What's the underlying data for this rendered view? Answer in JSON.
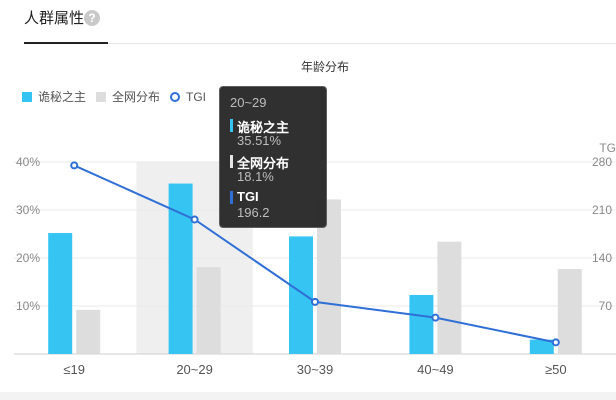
{
  "panel": {
    "tab_title": "人群属性",
    "help_icon": "?"
  },
  "chart_data": {
    "type": "bar",
    "title": "年龄分布",
    "categories": [
      "≤19",
      "20~29",
      "30~39",
      "40~49",
      "≥50"
    ],
    "series": [
      {
        "name": "诡秘之主",
        "type": "bar",
        "color": "#36c5f2",
        "values": [
          25.2,
          35.51,
          24.5,
          12.3,
          3.0
        ]
      },
      {
        "name": "全网分布",
        "type": "bar",
        "color": "#dddddd",
        "values": [
          9.2,
          18.1,
          32.2,
          23.4,
          17.7
        ]
      },
      {
        "name": "TGI",
        "type": "line",
        "color": "#2f6fd6",
        "axis": "right",
        "values": [
          275,
          196.2,
          76,
          53,
          17
        ]
      }
    ],
    "yticks_left": [
      "10%",
      "20%",
      "30%",
      "40%"
    ],
    "yticks_left_values": [
      10,
      20,
      30,
      40
    ],
    "yticks_right": [
      "70",
      "140",
      "210",
      "280"
    ],
    "yticks_right_values": [
      70,
      140,
      210,
      280
    ],
    "right_axis_title": "TG",
    "ylim_left": [
      0,
      40
    ],
    "ylim_right": [
      0,
      280
    ],
    "highlighted_category": "20~29",
    "legend_position": "top-left",
    "grid": true
  },
  "tooltip": {
    "title": "20~29",
    "items": [
      {
        "name": "诡秘之主",
        "value": "35.51%",
        "color": "#36c5f2"
      },
      {
        "name": "全网分布",
        "value": "18.1%",
        "color": "#e6e6e6"
      },
      {
        "name": "TGI",
        "value": "196.2",
        "color": "#2f6fd6"
      }
    ]
  }
}
